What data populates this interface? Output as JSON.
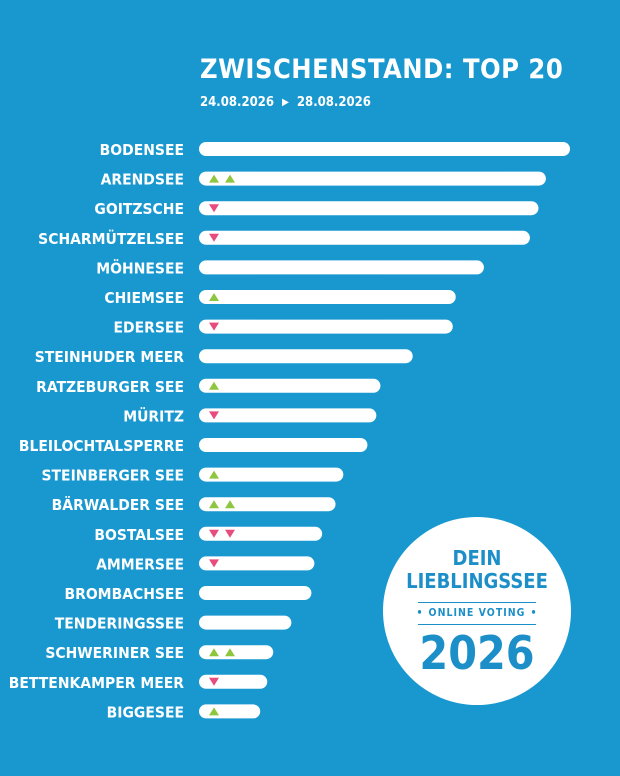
{
  "header": {
    "title": "ZWISCHENSTAND: TOP 20",
    "date_from": "24.08.2026",
    "date_to": "28.08.2026",
    "arrow_glyph": "▶"
  },
  "badge": {
    "line1": "DEIN",
    "line2": "LIEBLINGSSEE",
    "dot": "•",
    "line3": "ONLINE VOTING",
    "line4": "2026"
  },
  "colors": {
    "background": "#1998d0",
    "bar": "#ffffff",
    "up": "#8ec63f",
    "down": "#e84c7d",
    "badge_text": "#1d8fc8"
  },
  "chart_data": {
    "type": "bar",
    "orientation": "horizontal",
    "title": "ZWISCHENSTAND: TOP 20",
    "subtitle": "24.08.2026 ▶ 28.08.2026",
    "xlabel": "",
    "ylabel": "",
    "value_scale": "relative (no axis printed)",
    "xlim": [
      0,
      100
    ],
    "grid": false,
    "categories": [
      "BODENSEE",
      "ARENDSEE",
      "GOITZSCHE",
      "SCHARMÜTZELSEE",
      "MÖHNESEE",
      "CHIEMSEE",
      "EDERSEE",
      "STEINHUDER MEER",
      "RATZEBURGER SEE",
      "MÜRITZ",
      "BLEILOCHTALSPERRE",
      "STEINBERGER SEE",
      "BÄRWALDER SEE",
      "BOSTALSEE",
      "AMMERSEE",
      "BROMBACHSEE",
      "TENDERINGSSEE",
      "SCHWERINER SEE",
      "BETTENKAMPER MEER",
      "BIGGESEE"
    ],
    "values": [
      100,
      93.5,
      91.5,
      89.2,
      76.8,
      69.2,
      68.4,
      57.6,
      48.9,
      47.8,
      45.4,
      38.9,
      36.8,
      33.2,
      31.1,
      30.3,
      24.9,
      20.0,
      18.4,
      16.5
    ],
    "trend": [
      "none",
      "up2",
      "down1",
      "down1",
      "none",
      "up1",
      "down1",
      "none",
      "up1",
      "down1",
      "none",
      "up1",
      "up2",
      "down2",
      "down1",
      "none",
      "none",
      "up2",
      "down1",
      "up1"
    ]
  }
}
